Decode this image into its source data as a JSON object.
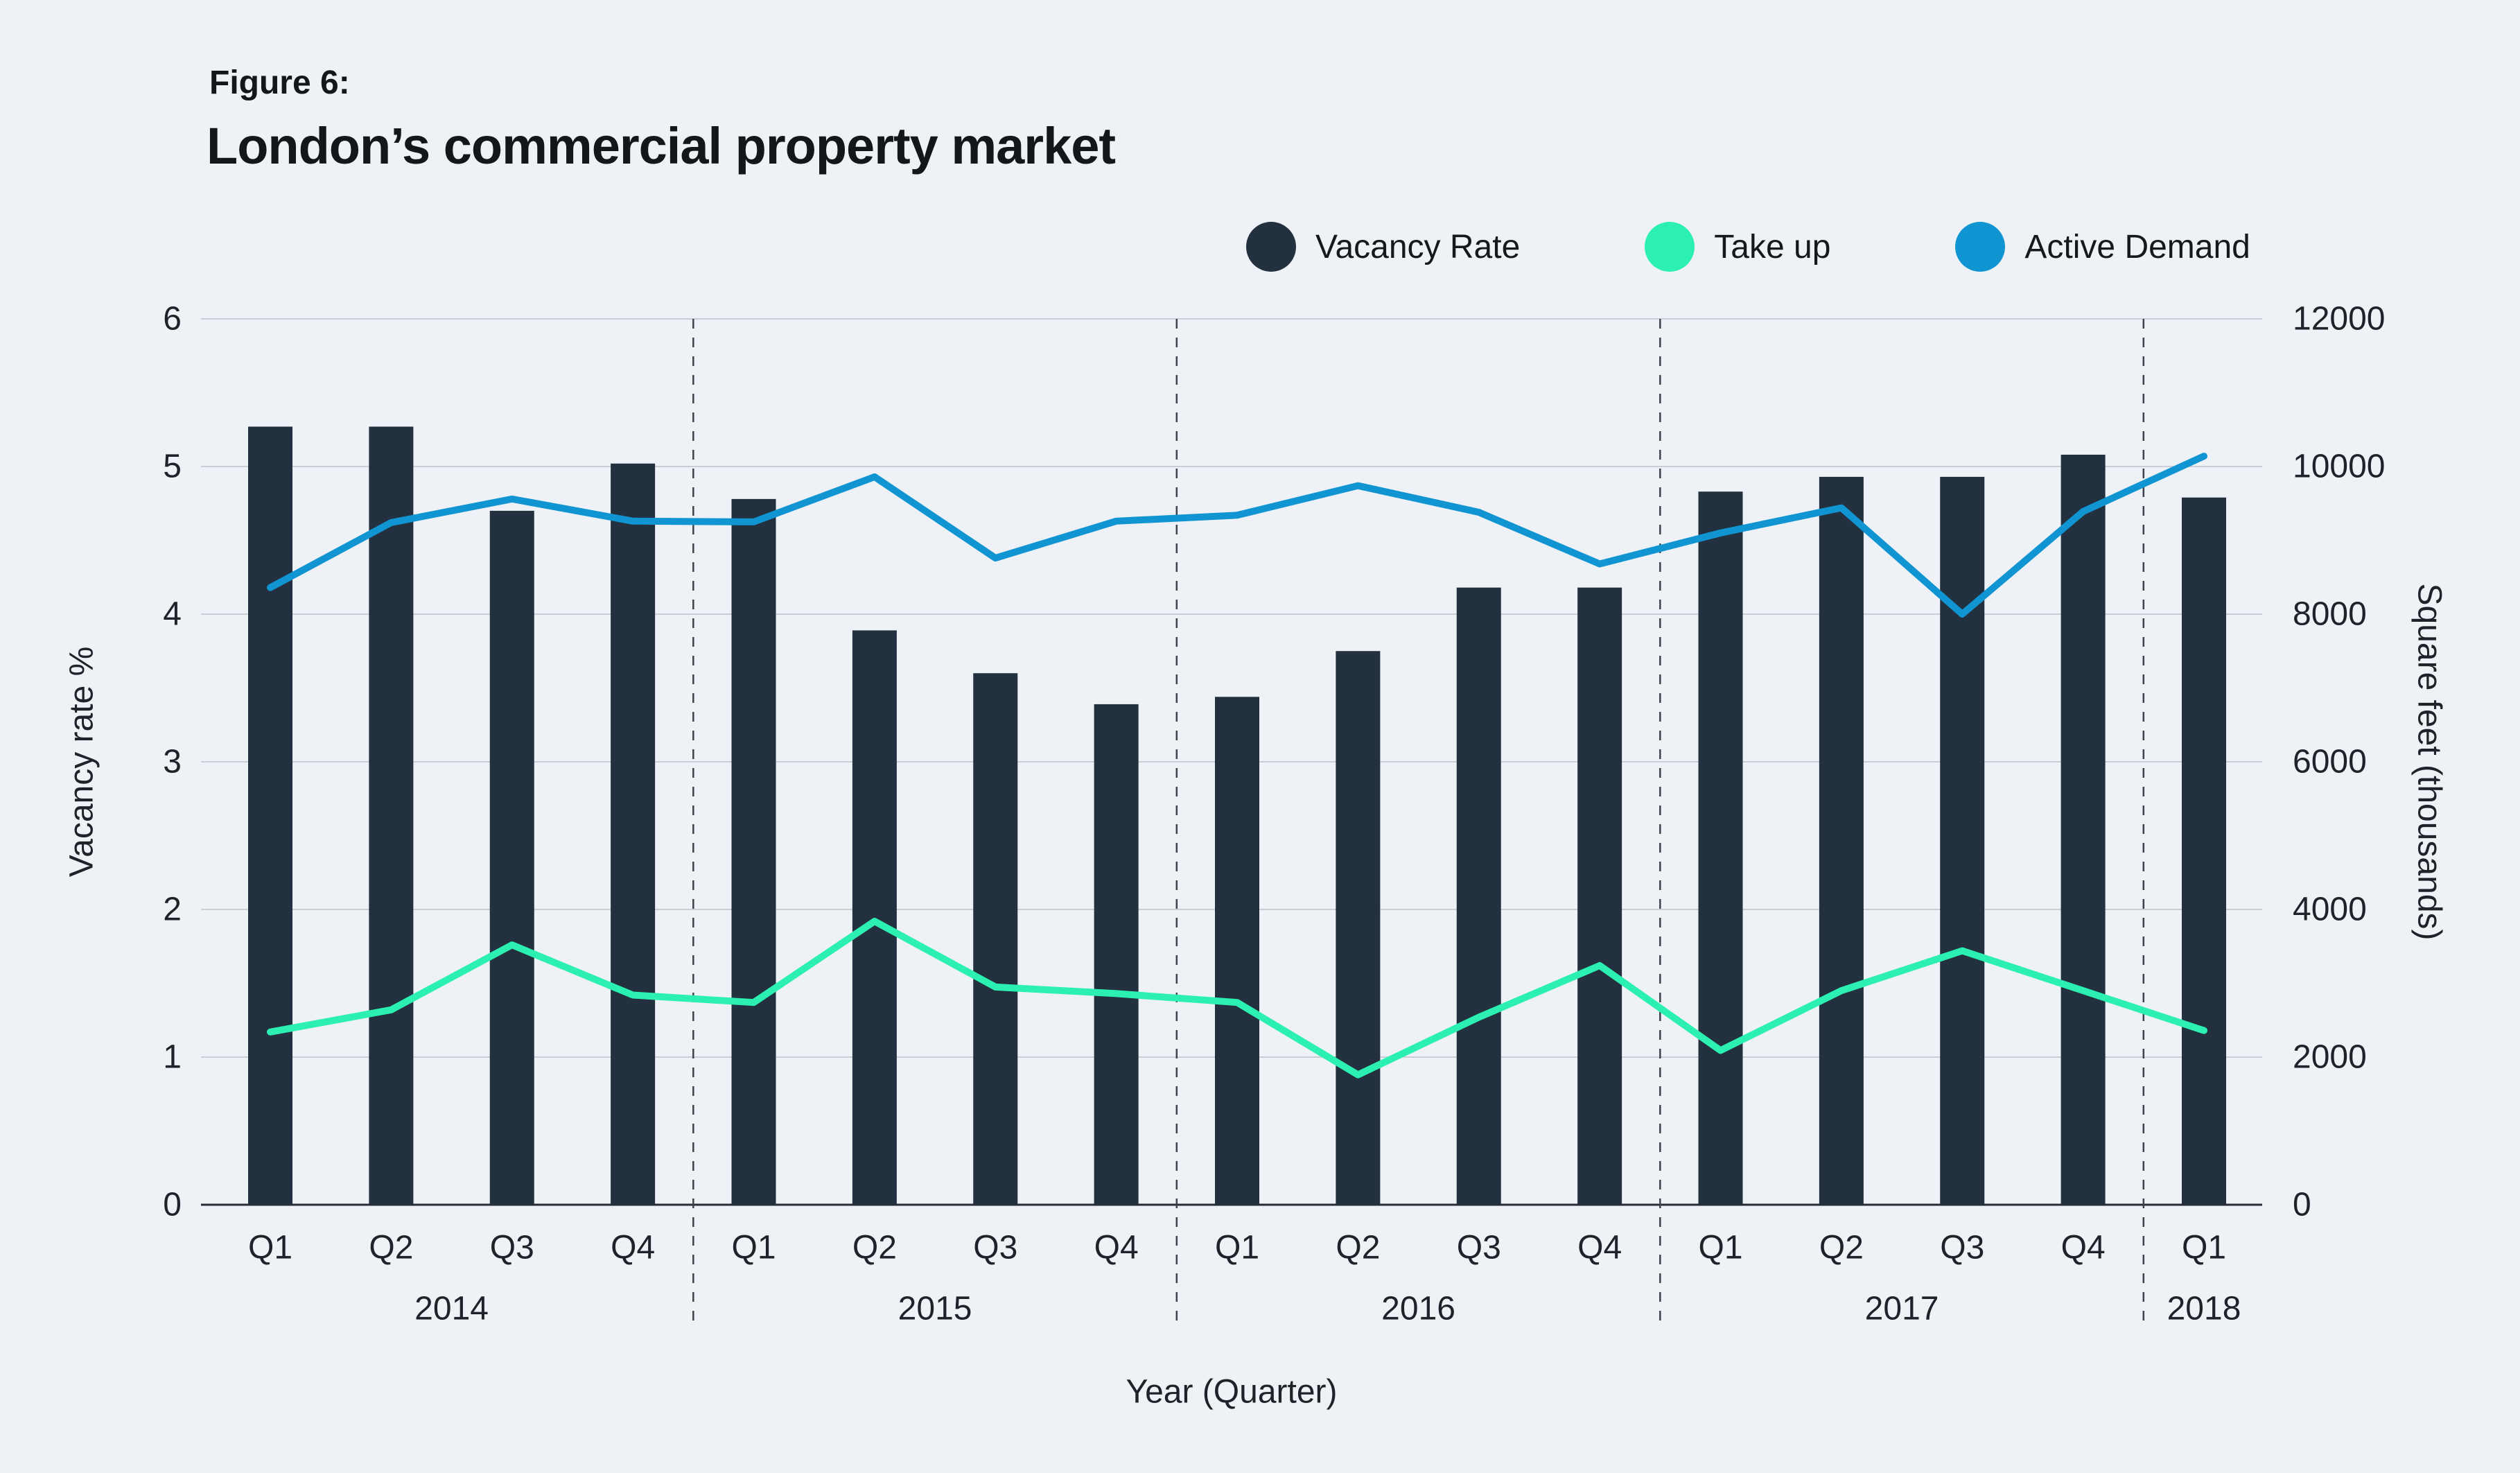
{
  "figure": {
    "label": "Figure 6:",
    "title": "London’s commercial property market"
  },
  "legend": [
    {
      "label": "Vacancy Rate",
      "color": "#22303f"
    },
    {
      "label": "Take up",
      "color": "#2bf0b1"
    },
    {
      "label": "Active Demand",
      "color": "#1095d2"
    }
  ],
  "colors": {
    "background": "#eef1f5",
    "bar": "#22303f",
    "take_up_line": "#2bf0b1",
    "active_demand_line": "#1095d2",
    "gridline": "#c9ced6",
    "axis_line": "#272c33",
    "year_separator": "#3d434b",
    "text": "#1e2329"
  },
  "chart_data": {
    "type": "bar",
    "subtype": "dual-axis-combo-bar-line",
    "grid": "horizontal-on",
    "legend_position": "top-right",
    "xlabel": "Year (Quarter)",
    "quarters": [
      "Q1",
      "Q2",
      "Q3",
      "Q4",
      "Q1",
      "Q2",
      "Q3",
      "Q4",
      "Q1",
      "Q2",
      "Q3",
      "Q4",
      "Q1",
      "Q2",
      "Q3",
      "Q4",
      "Q1"
    ],
    "year_groups": [
      {
        "year": "2014",
        "count": 4
      },
      {
        "year": "2015",
        "count": 4
      },
      {
        "year": "2016",
        "count": 4
      },
      {
        "year": "2017",
        "count": 4
      },
      {
        "year": "2018",
        "count": 1
      }
    ],
    "axes": {
      "left": {
        "label": "Vacancy rate %",
        "min": 0,
        "max": 6,
        "ticks": [
          0,
          1,
          2,
          3,
          4,
          5,
          6
        ]
      },
      "right": {
        "label": "Square feet (thousands)",
        "min": 0,
        "max": 12000,
        "ticks": [
          0,
          2000,
          4000,
          6000,
          8000,
          10000,
          12000
        ]
      }
    },
    "series": [
      {
        "name": "Vacancy Rate",
        "kind": "bar",
        "axis": "left",
        "color": "#22303f",
        "values": [
          5.27,
          5.27,
          4.7,
          5.02,
          4.78,
          3.89,
          3.6,
          3.39,
          3.44,
          3.75,
          4.18,
          4.18,
          4.83,
          4.93,
          4.93,
          5.08,
          4.79
        ]
      },
      {
        "name": "Take up",
        "kind": "line",
        "axis": "right",
        "color": "#2bf0b1",
        "values": [
          2340,
          2640,
          3520,
          2840,
          2740,
          3840,
          2950,
          2860,
          2740,
          1760,
          2540,
          3240,
          2090,
          2900,
          3440,
          2900,
          2360
        ]
      },
      {
        "name": "Active Demand",
        "kind": "line",
        "axis": "right",
        "color": "#1095d2",
        "values": [
          8360,
          9240,
          9560,
          9260,
          9250,
          9860,
          8760,
          9260,
          9340,
          9740,
          9380,
          8680,
          9100,
          9440,
          8000,
          9390,
          10140
        ]
      }
    ]
  }
}
